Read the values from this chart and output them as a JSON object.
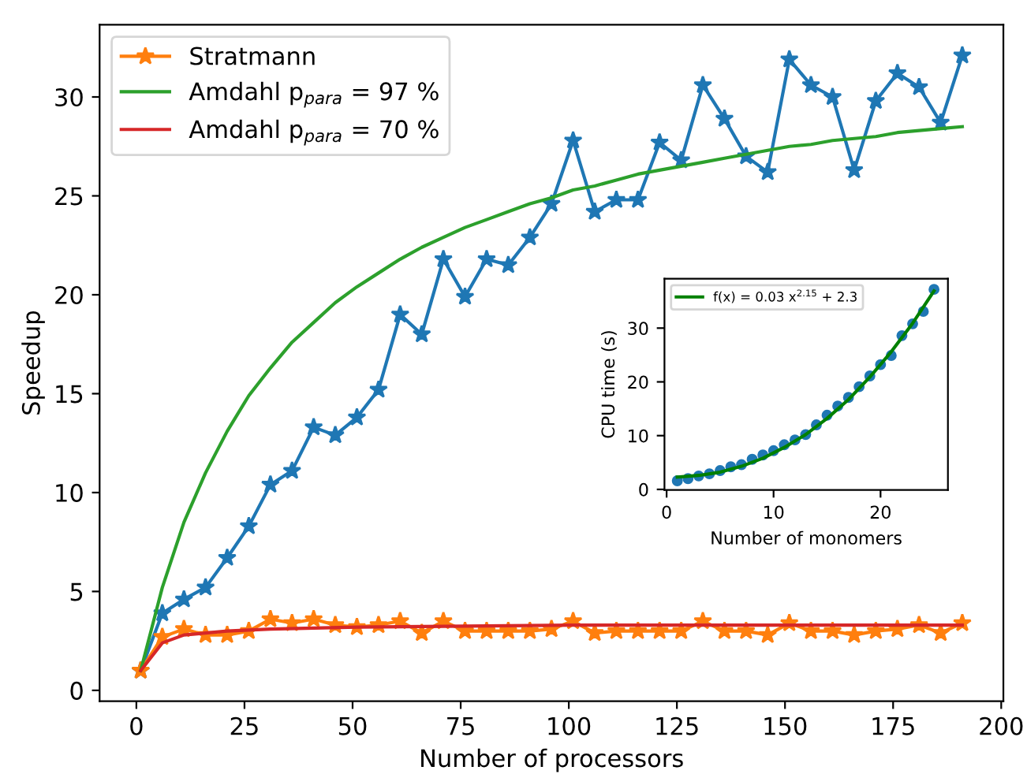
{
  "chart_data": [
    {
      "type": "line",
      "xlabel": "Number of processors",
      "ylabel": "Speedup",
      "xlim": [
        -8.5,
        200.5
      ],
      "ylim": [
        -0.55,
        33.65
      ],
      "xticks": [
        0,
        25,
        50,
        75,
        100,
        125,
        150,
        175,
        200
      ],
      "yticks": [
        0,
        5,
        10,
        15,
        20,
        25,
        30
      ],
      "legend": "top left",
      "grid": false,
      "series": [
        {
          "color": "#1f77b4",
          "marker": "star",
          "x": [
            1,
            6,
            11,
            16,
            21,
            26,
            31,
            36,
            41,
            46,
            51,
            56,
            61,
            66,
            71,
            76,
            81,
            86,
            91,
            96,
            101,
            106,
            111,
            116,
            121,
            126,
            131,
            136,
            141,
            146,
            151,
            156,
            161,
            166,
            171,
            176,
            181,
            186,
            191
          ],
          "values": [
            1.0,
            3.9,
            4.6,
            5.2,
            6.7,
            8.3,
            10.4,
            11.1,
            13.3,
            12.9,
            13.8,
            15.2,
            19.0,
            18.0,
            21.8,
            19.9,
            21.8,
            21.5,
            22.9,
            24.6,
            27.8,
            24.2,
            24.8,
            24.8,
            27.7,
            26.8,
            30.6,
            28.9,
            27.0,
            26.2,
            31.9,
            30.6,
            30.0,
            26.3,
            29.8,
            31.2,
            30.5,
            28.7,
            32.1
          ]
        },
        {
          "name": "Stratmann",
          "color": "#ff7f0e",
          "marker": "star",
          "x": [
            1,
            6,
            11,
            16,
            21,
            26,
            31,
            36,
            41,
            46,
            51,
            56,
            61,
            66,
            71,
            76,
            81,
            86,
            91,
            96,
            101,
            106,
            111,
            116,
            121,
            126,
            131,
            136,
            141,
            146,
            151,
            156,
            161,
            166,
            171,
            176,
            181,
            186,
            191
          ],
          "values": [
            1.0,
            2.7,
            3.1,
            2.8,
            2.8,
            3.0,
            3.6,
            3.4,
            3.6,
            3.3,
            3.2,
            3.3,
            3.5,
            2.9,
            3.5,
            3.0,
            3.0,
            3.0,
            3.0,
            3.1,
            3.5,
            2.9,
            3.0,
            3.0,
            3.0,
            3.0,
            3.5,
            3.0,
            3.0,
            2.8,
            3.4,
            3.0,
            3.0,
            2.8,
            3.0,
            3.1,
            3.3,
            2.9,
            3.4
          ]
        },
        {
          "name": "Amdahl p$_{para}$ = 97 %",
          "color": "#2ca02c",
          "marker": "none",
          "x": [
            1,
            6,
            11,
            16,
            21,
            26,
            31,
            36,
            41,
            46,
            51,
            56,
            61,
            66,
            71,
            76,
            81,
            86,
            91,
            96,
            101,
            106,
            111,
            116,
            121,
            126,
            131,
            136,
            141,
            146,
            151,
            156,
            161,
            166,
            171,
            176,
            181,
            186,
            191
          ],
          "values": [
            1.0,
            5.2,
            8.5,
            11.0,
            13.1,
            14.9,
            16.3,
            17.6,
            18.6,
            19.6,
            20.4,
            21.1,
            21.8,
            22.4,
            22.9,
            23.4,
            23.8,
            24.2,
            24.6,
            24.9,
            25.3,
            25.5,
            25.8,
            26.1,
            26.3,
            26.5,
            26.7,
            26.9,
            27.1,
            27.3,
            27.5,
            27.6,
            27.8,
            27.9,
            28.0,
            28.2,
            28.3,
            28.4,
            28.5
          ]
        },
        {
          "name": "Amdahl p$_{para}$ = 70 %",
          "color": "#d62728",
          "marker": "none",
          "x": [
            1,
            6,
            11,
            16,
            21,
            31,
            51,
            101,
            191
          ],
          "values": [
            1.0,
            2.4,
            2.8,
            2.9,
            3.0,
            3.1,
            3.2,
            3.3,
            3.3
          ]
        }
      ]
    },
    {
      "type": "scatter",
      "xlabel": "Number of monomers",
      "ylabel": "CPU time (s)",
      "xlim": [
        -0.2,
        26.3
      ],
      "ylim": [
        -0.1,
        39.2
      ],
      "xticks": [
        0,
        10,
        20
      ],
      "yticks": [
        0,
        10,
        20,
        30
      ],
      "legend": "top left",
      "grid": false,
      "series": [
        {
          "color": "#1f77b4",
          "marker": "circle",
          "x": [
            1,
            2,
            3,
            4,
            5,
            6,
            7,
            8,
            9,
            10,
            11,
            12,
            13,
            14,
            15,
            16,
            17,
            18,
            19,
            20,
            21,
            22,
            23,
            24,
            25
          ],
          "values": [
            1.6,
            2.0,
            2.5,
            2.9,
            3.5,
            4.2,
            4.6,
            5.6,
            6.4,
            7.2,
            8.3,
            9.2,
            10.2,
            12.0,
            13.8,
            15.5,
            17.1,
            19.1,
            21.1,
            23.2,
            24.9,
            28.6,
            30.8,
            33.1,
            37.2
          ]
        },
        {
          "name": "f(x) = 0.03 x$^{2.15}$ + 2.3",
          "type": "line",
          "color": "#008000",
          "marker": "none",
          "x": [
            1,
            3,
            5,
            7,
            9,
            11,
            13,
            15,
            17,
            19,
            21,
            23,
            25
          ],
          "values": [
            2.3,
            2.6,
            3.2,
            4.3,
            5.8,
            7.8,
            10.2,
            13.2,
            16.7,
            20.9,
            25.6,
            30.9,
            36.9
          ]
        }
      ]
    }
  ]
}
